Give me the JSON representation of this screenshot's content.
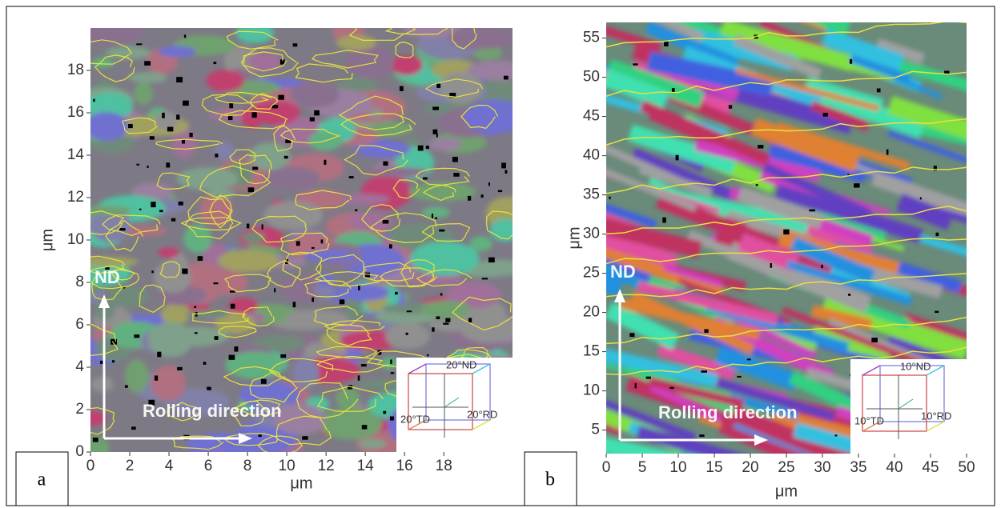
{
  "chart_data": [
    {
      "type": "map",
      "tag": "a",
      "x_label": "μm",
      "y_label": "μm",
      "xlim": [
        0,
        21.5
      ],
      "ylim": [
        0,
        20
      ],
      "xticks": [
        0,
        2,
        4,
        6,
        8,
        10,
        12,
        14,
        16,
        18
      ],
      "yticks": [
        0,
        2,
        4,
        6,
        8,
        10,
        12,
        14,
        16,
        18
      ],
      "arrow_up_label": "ND",
      "arrow_right_label": "Rolling direction",
      "legend": {
        "nd": "20°ND",
        "td": "20°TD",
        "rd": "20°RD"
      }
    },
    {
      "type": "map",
      "tag": "b",
      "x_label": "μm",
      "y_label": "μm",
      "xlim": [
        0,
        50
      ],
      "ylim": [
        2,
        57
      ],
      "xticks": [
        0,
        5,
        10,
        15,
        20,
        25,
        30,
        35,
        40,
        45,
        50
      ],
      "yticks": [
        5,
        10,
        15,
        20,
        25,
        30,
        35,
        40,
        45,
        50,
        55
      ],
      "arrow_up_label": "ND",
      "arrow_right_label": "Rolling direction",
      "legend": {
        "nd": "10°ND",
        "td": "10°TD",
        "rd": "10°RD"
      }
    }
  ]
}
